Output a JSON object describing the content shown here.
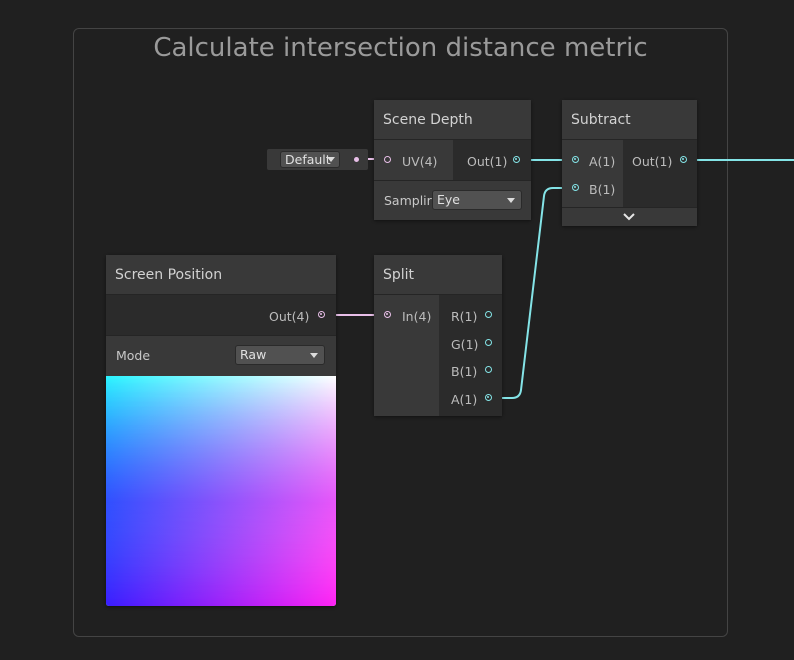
{
  "group": {
    "title": "Calculate intersection distance metric"
  },
  "default_input": {
    "value": "Default"
  },
  "scene_depth": {
    "title": "Scene Depth",
    "input_label": "UV(4)",
    "output_label": "Out(1)",
    "sampling_label": "Samplir",
    "sampling_value": "Eye"
  },
  "subtract": {
    "title": "Subtract",
    "input_a": "A(1)",
    "input_b": "B(1)",
    "output_label": "Out(1)",
    "expand_icon": "chevron-down-icon"
  },
  "screen_position": {
    "title": "Screen Position",
    "output_label": "Out(4)",
    "mode_label": "Mode",
    "mode_value": "Raw"
  },
  "split": {
    "title": "Split",
    "input_label": "In(4)",
    "outputs": [
      "R(1)",
      "G(1)",
      "B(1)",
      "A(1)"
    ]
  },
  "colors": {
    "vector1_wire": "#84e4e7",
    "vector4_wire": "#e8bfe8",
    "background": "#202020"
  }
}
